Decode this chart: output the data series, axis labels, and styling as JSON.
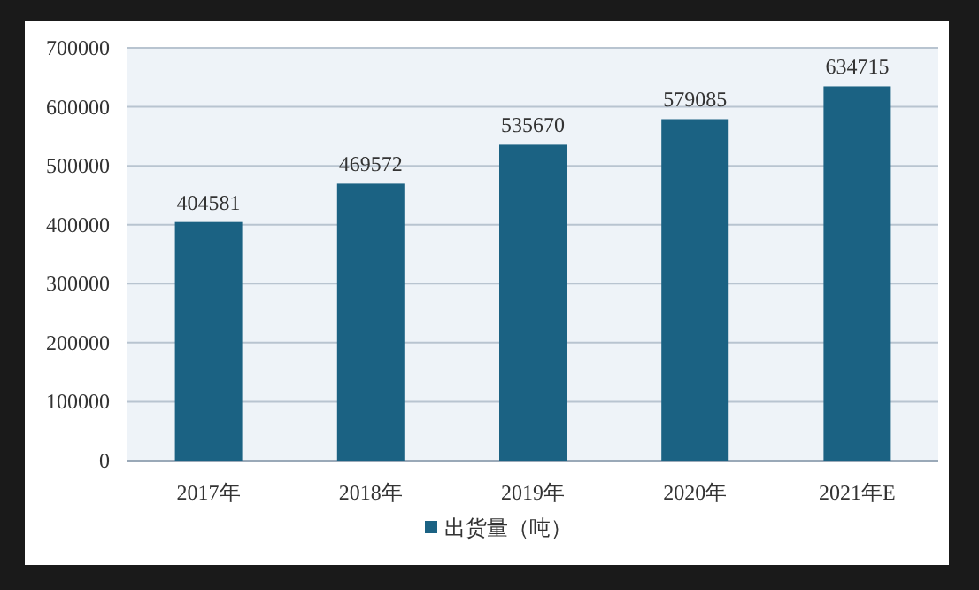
{
  "chart_data": {
    "type": "bar",
    "categories": [
      "2017年",
      "2018年",
      "2019年",
      "2020年",
      "2021年E"
    ],
    "series": [
      {
        "name": "出货量（吨）",
        "color": "#1b6283",
        "values": [
          404581,
          469572,
          535670,
          579085,
          634715
        ]
      }
    ],
    "ylim": [
      0,
      700000
    ],
    "yticks": [
      0,
      100000,
      200000,
      300000,
      400000,
      500000,
      600000,
      700000
    ],
    "grid": "y",
    "legend": "bottom",
    "data_labels": true
  }
}
